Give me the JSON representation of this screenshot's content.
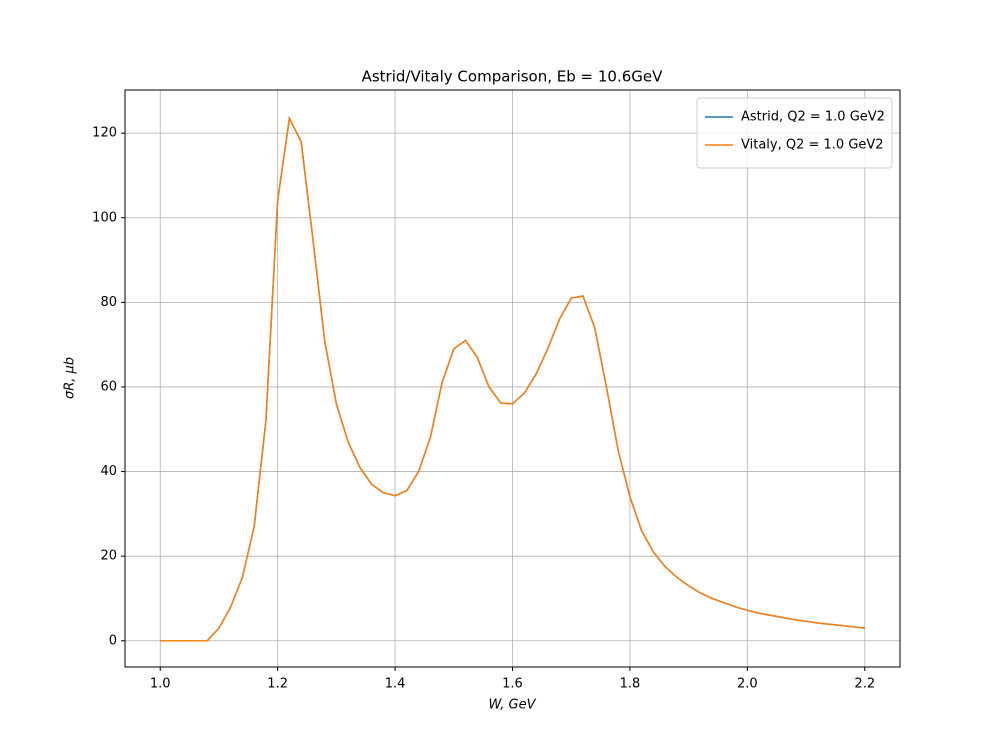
{
  "chart_data": {
    "type": "line",
    "title": "Astrid/Vitaly Comparison, Eb = 10.6GeV",
    "xlabel": "W, GeV",
    "ylabel": "σR, μb",
    "x": [
      1.0,
      1.02,
      1.04,
      1.06,
      1.08,
      1.1,
      1.12,
      1.14,
      1.16,
      1.18,
      1.2,
      1.22,
      1.24,
      1.26,
      1.28,
      1.3,
      1.32,
      1.34,
      1.36,
      1.38,
      1.4,
      1.42,
      1.44,
      1.46,
      1.48,
      1.5,
      1.52,
      1.54,
      1.56,
      1.58,
      1.6,
      1.62,
      1.64,
      1.66,
      1.68,
      1.7,
      1.72,
      1.74,
      1.76,
      1.78,
      1.8,
      1.82,
      1.84,
      1.86,
      1.88,
      1.9,
      1.92,
      1.94,
      1.96,
      1.98,
      2.0,
      2.02,
      2.04,
      2.06,
      2.08,
      2.1,
      2.12,
      2.14,
      2.16,
      2.18,
      2.2
    ],
    "series": [
      {
        "name": "Astrid, Q2 = 1.0 GeV2",
        "color": "#1f77b4",
        "values": [
          0,
          0,
          0,
          0,
          0,
          3,
          8,
          15,
          27,
          52,
          104,
          123.5,
          118,
          95,
          71,
          56,
          47,
          41,
          37,
          35,
          34.3,
          35.5,
          40,
          48,
          61,
          69,
          71,
          67,
          60,
          56.2,
          56,
          58.5,
          63,
          69,
          76,
          81,
          81.5,
          74,
          60,
          45,
          34,
          26,
          21,
          17.5,
          15,
          13,
          11.3,
          10,
          9,
          8,
          7.2,
          6.5,
          6,
          5.5,
          5,
          4.6,
          4.2,
          3.9,
          3.6,
          3.3,
          3.0
        ]
      },
      {
        "name": "Vitaly, Q2 = 1.0 GeV2",
        "color": "#ff7f0e",
        "values": [
          0,
          0,
          0,
          0,
          0,
          3,
          8,
          15,
          27,
          52,
          104,
          123.5,
          118,
          95,
          71,
          56,
          47,
          41,
          37,
          35,
          34.3,
          35.5,
          40,
          48,
          61,
          69,
          71,
          67,
          60,
          56.2,
          56,
          58.5,
          63,
          69,
          76,
          81,
          81.5,
          74,
          60,
          45,
          34,
          26,
          21,
          17.5,
          15,
          13,
          11.3,
          10,
          9,
          8,
          7.2,
          6.5,
          6,
          5.5,
          5,
          4.6,
          4.2,
          3.9,
          3.6,
          3.3,
          3.0
        ]
      }
    ],
    "xlim": [
      0.94,
      2.26
    ],
    "xticks": [
      {
        "value": 1.0,
        "label": "1.0"
      },
      1.2,
      1.4,
      1.6,
      1.8,
      {
        "value": 2.0,
        "label": "2.0"
      },
      2.2
    ],
    "ylim": [
      -6.2,
      130.2
    ],
    "yticks": [
      0,
      20,
      40,
      60,
      80,
      100,
      120
    ],
    "grid": true,
    "legend": "upper right"
  }
}
